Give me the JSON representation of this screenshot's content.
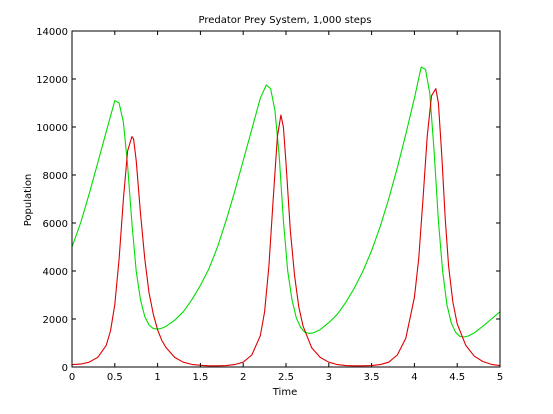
{
  "chart_data": {
    "type": "line",
    "title": "Predator Prey System, 1,000 steps",
    "xlabel": "Time",
    "ylabel": "Population",
    "xlim": [
      0,
      5
    ],
    "ylim": [
      0,
      14000
    ],
    "xticks": [
      "0",
      "0.5",
      "1",
      "1.5",
      "2",
      "2.5",
      "3",
      "3.5",
      "4",
      "4.5",
      "5"
    ],
    "yticks": [
      "0",
      "2000",
      "4000",
      "6000",
      "8000",
      "10000",
      "12000",
      "14000"
    ],
    "grid": false,
    "legend": "none",
    "series": [
      {
        "color": "#00dd00",
        "x": [
          0,
          0.1,
          0.2,
          0.3,
          0.4,
          0.5,
          0.55,
          0.6,
          0.65,
          0.7,
          0.75,
          0.8,
          0.85,
          0.9,
          0.95,
          1.0,
          1.05,
          1.1,
          1.2,
          1.3,
          1.4,
          1.5,
          1.6,
          1.7,
          1.8,
          1.9,
          2.0,
          2.1,
          2.2,
          2.27,
          2.32,
          2.37,
          2.42,
          2.47,
          2.52,
          2.57,
          2.62,
          2.67,
          2.72,
          2.77,
          2.82,
          2.9,
          3.0,
          3.1,
          3.2,
          3.3,
          3.4,
          3.5,
          3.6,
          3.7,
          3.8,
          3.9,
          4.0,
          4.08,
          4.13,
          4.18,
          4.23,
          4.28,
          4.33,
          4.38,
          4.43,
          4.48,
          4.53,
          4.58,
          4.63,
          4.7,
          4.8,
          4.9,
          5.0
        ],
        "values": [
          5000,
          6000,
          7200,
          8500,
          9800,
          11100,
          11000,
          10200,
          8400,
          6000,
          4000,
          2800,
          2100,
          1750,
          1600,
          1580,
          1620,
          1700,
          1950,
          2300,
          2800,
          3400,
          4100,
          5000,
          6100,
          7300,
          8600,
          9900,
          11200,
          11750,
          11600,
          10700,
          8800,
          6100,
          4000,
          2800,
          2050,
          1650,
          1450,
          1400,
          1420,
          1560,
          1850,
          2200,
          2700,
          3300,
          4000,
          4850,
          5850,
          7000,
          8300,
          9700,
          11200,
          12500,
          12400,
          11400,
          9000,
          6100,
          4000,
          2600,
          1850,
          1450,
          1280,
          1250,
          1290,
          1420,
          1700,
          2000,
          2300
        ]
      },
      {
        "color": "#dd0000",
        "x": [
          0,
          0.1,
          0.2,
          0.3,
          0.4,
          0.45,
          0.5,
          0.55,
          0.6,
          0.65,
          0.7,
          0.72,
          0.75,
          0.8,
          0.85,
          0.9,
          0.95,
          1.0,
          1.05,
          1.1,
          1.2,
          1.3,
          1.4,
          1.5,
          1.6,
          1.7,
          1.8,
          1.9,
          2.0,
          2.1,
          2.2,
          2.25,
          2.3,
          2.35,
          2.4,
          2.44,
          2.47,
          2.5,
          2.55,
          2.6,
          2.65,
          2.7,
          2.8,
          2.9,
          3.0,
          3.1,
          3.2,
          3.3,
          3.4,
          3.5,
          3.6,
          3.7,
          3.8,
          3.9,
          4.0,
          4.05,
          4.1,
          4.15,
          4.2,
          4.25,
          4.28,
          4.32,
          4.36,
          4.4,
          4.45,
          4.5,
          4.6,
          4.7,
          4.8,
          4.9,
          5.0
        ],
        "values": [
          100,
          120,
          200,
          400,
          900,
          1500,
          2600,
          4500,
          7000,
          9000,
          9600,
          9500,
          8600,
          6400,
          4500,
          3100,
          2200,
          1550,
          1100,
          800,
          400,
          200,
          110,
          70,
          50,
          50,
          60,
          100,
          200,
          500,
          1300,
          2300,
          4200,
          7000,
          9600,
          10500,
          10000,
          8500,
          5700,
          3800,
          2500,
          1700,
          800,
          400,
          200,
          100,
          60,
          50,
          50,
          60,
          100,
          200,
          500,
          1200,
          2900,
          4500,
          7000,
          9600,
          11300,
          11600,
          11000,
          8800,
          6200,
          4200,
          2700,
          1800,
          900,
          450,
          230,
          110,
          60
        ]
      }
    ]
  }
}
